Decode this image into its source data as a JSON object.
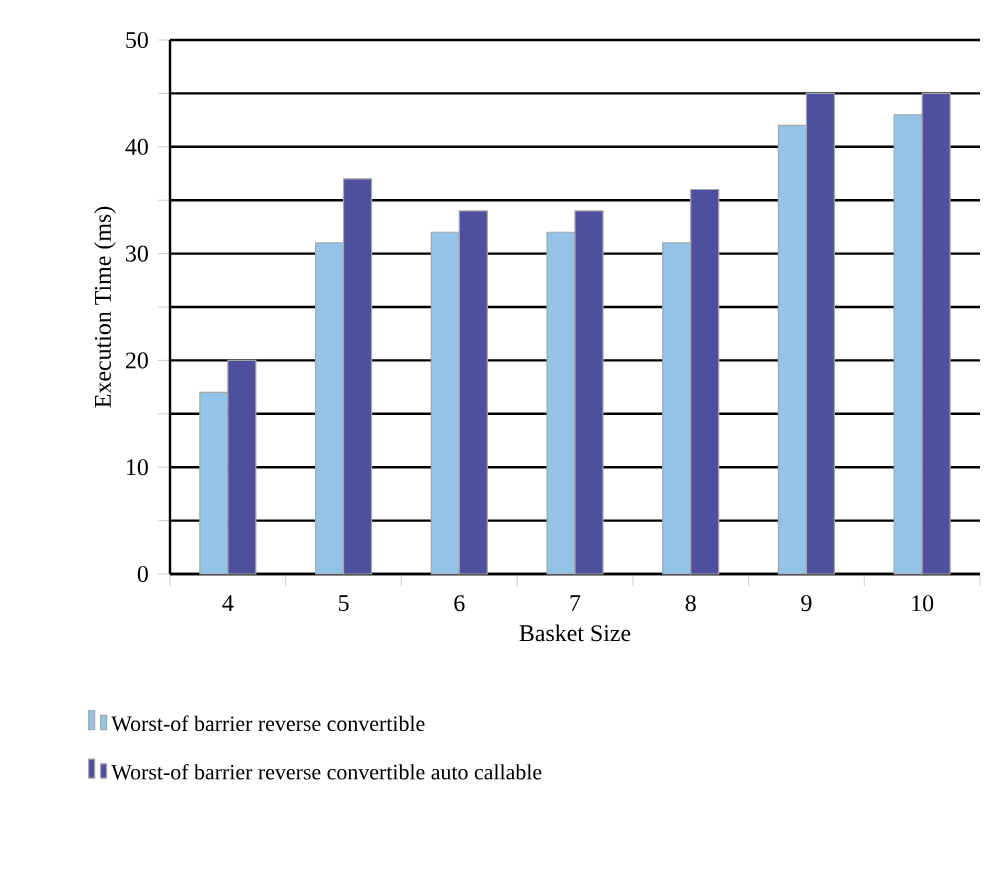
{
  "chart_data": {
    "type": "bar",
    "xlabel": "Basket Size",
    "ylabel": "Execution Time (ms)",
    "categories": [
      "4",
      "5",
      "6",
      "7",
      "8",
      "9",
      "10"
    ],
    "series": [
      {
        "name": "Worst-of barrier reverse convertible",
        "color": "#93c4e8",
        "values": [
          17,
          31,
          32,
          32,
          31,
          42,
          43
        ]
      },
      {
        "name": "Worst-of barrier reverse convertible auto callable",
        "color": "#4f4fa0",
        "values": [
          20,
          37,
          34,
          34,
          36,
          45,
          45
        ]
      }
    ],
    "ylim": [
      0,
      50
    ],
    "yticks": [
      0,
      {
        "value": 5,
        "label": null
      },
      10,
      {
        "value": 15,
        "label": null
      },
      20,
      {
        "value": 25,
        "label": null
      },
      30,
      {
        "value": 35,
        "label": null
      },
      40,
      {
        "value": 45,
        "label": null
      },
      50
    ],
    "grid": "y",
    "legend": "bottom left"
  }
}
